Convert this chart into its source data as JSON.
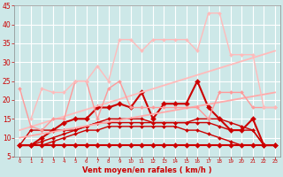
{
  "xlabel": "Vent moyen/en rafales ( km/h )",
  "xlim": [
    -0.5,
    23.5
  ],
  "ylim": [
    5,
    45
  ],
  "yticks": [
    5,
    10,
    15,
    20,
    25,
    30,
    35,
    40,
    45
  ],
  "xticks": [
    0,
    1,
    2,
    3,
    4,
    5,
    6,
    7,
    8,
    9,
    10,
    11,
    12,
    13,
    14,
    15,
    16,
    17,
    18,
    19,
    20,
    21,
    22,
    23
  ],
  "background_color": "#cde8e8",
  "grid_color": "#ffffff",
  "series": [
    {
      "x": [
        0,
        1,
        2,
        3,
        4,
        5,
        6,
        7,
        8,
        9,
        10,
        11,
        12,
        13,
        14,
        15,
        16,
        17,
        18,
        19,
        20,
        21,
        22,
        23
      ],
      "y": [
        8,
        8,
        8,
        8,
        8,
        8,
        8,
        8,
        8,
        8,
        8,
        8,
        8,
        8,
        8,
        8,
        8,
        8,
        8,
        8,
        8,
        8,
        8,
        8
      ],
      "color": "#cc0000",
      "lw": 1.5,
      "marker": "D",
      "ms": 3
    },
    {
      "x": [
        0,
        1,
        2,
        3,
        4,
        5,
        6,
        7,
        8,
        9,
        10,
        11,
        12,
        13,
        14,
        15,
        16,
        17,
        18,
        19,
        20,
        21,
        22,
        23
      ],
      "y": [
        8,
        8,
        8,
        9,
        10,
        11,
        12,
        12,
        13,
        13,
        13,
        13,
        13,
        13,
        13,
        12,
        12,
        11,
        10,
        9,
        8,
        8,
        8,
        8
      ],
      "color": "#cc0000",
      "lw": 1.0,
      "marker": "D",
      "ms": 2
    },
    {
      "x": [
        0,
        1,
        2,
        3,
        4,
        5,
        6,
        7,
        8,
        9,
        10,
        11,
        12,
        13,
        14,
        15,
        16,
        17,
        18,
        19,
        20,
        21,
        22,
        23
      ],
      "y": [
        8,
        12,
        12,
        12,
        12,
        12,
        13,
        14,
        14,
        14,
        14,
        14,
        14,
        14,
        14,
        14,
        14,
        14,
        13,
        12,
        12,
        12,
        8,
        8
      ],
      "color": "#cc0000",
      "lw": 1.0,
      "marker": "D",
      "ms": 2
    },
    {
      "x": [
        0,
        1,
        2,
        3,
        4,
        5,
        6,
        7,
        8,
        9,
        10,
        11,
        12,
        13,
        14,
        15,
        16,
        17,
        18,
        19,
        20,
        21,
        22,
        23
      ],
      "y": [
        8,
        8,
        9,
        10,
        11,
        12,
        13,
        14,
        15,
        15,
        15,
        15,
        14,
        14,
        14,
        14,
        15,
        15,
        15,
        14,
        13,
        12,
        8,
        8
      ],
      "color": "#cc0000",
      "lw": 1.0,
      "marker": "D",
      "ms": 2
    },
    {
      "x": [
        0,
        1,
        2,
        3,
        4,
        5,
        6,
        7,
        8,
        9,
        10,
        11,
        12,
        13,
        14,
        15,
        16,
        17,
        18,
        19,
        20,
        21,
        22,
        23
      ],
      "y": [
        8,
        8,
        10,
        12,
        14,
        15,
        15,
        18,
        18,
        19,
        18,
        22,
        15,
        19,
        19,
        19,
        25,
        18,
        15,
        12,
        12,
        15,
        8,
        8
      ],
      "color": "#cc0000",
      "lw": 1.5,
      "marker": "D",
      "ms": 3
    },
    {
      "x": [
        0,
        23
      ],
      "y": [
        10,
        22
      ],
      "color": "#ffaaaa",
      "lw": 1.3,
      "marker": null,
      "ms": 0
    },
    {
      "x": [
        0,
        23
      ],
      "y": [
        12,
        33
      ],
      "color": "#ffbbbb",
      "lw": 1.3,
      "marker": null,
      "ms": 0
    },
    {
      "x": [
        0,
        1,
        2,
        3,
        4,
        5,
        6,
        7,
        8,
        9,
        10,
        11,
        12,
        13,
        14,
        15,
        16,
        17,
        18,
        19,
        20,
        21,
        22,
        23
      ],
      "y": [
        23,
        13,
        12,
        15,
        15,
        25,
        25,
        15,
        23,
        25,
        18,
        18,
        18,
        18,
        18,
        18,
        18,
        15,
        22,
        22,
        22,
        18,
        18,
        18
      ],
      "color": "#ff9999",
      "lw": 1.0,
      "marker": "D",
      "ms": 2
    },
    {
      "x": [
        1,
        2,
        3,
        4,
        5,
        6,
        7,
        8,
        9,
        10,
        11,
        12,
        13,
        14,
        15,
        16,
        17,
        18,
        19,
        20,
        21,
        22,
        23
      ],
      "y": [
        15,
        23,
        22,
        22,
        25,
        25,
        29,
        25,
        36,
        36,
        33,
        36,
        36,
        36,
        36,
        33,
        43,
        43,
        32,
        32,
        32,
        18,
        18
      ],
      "color": "#ffbbbb",
      "lw": 1.0,
      "marker": "D",
      "ms": 2
    }
  ]
}
